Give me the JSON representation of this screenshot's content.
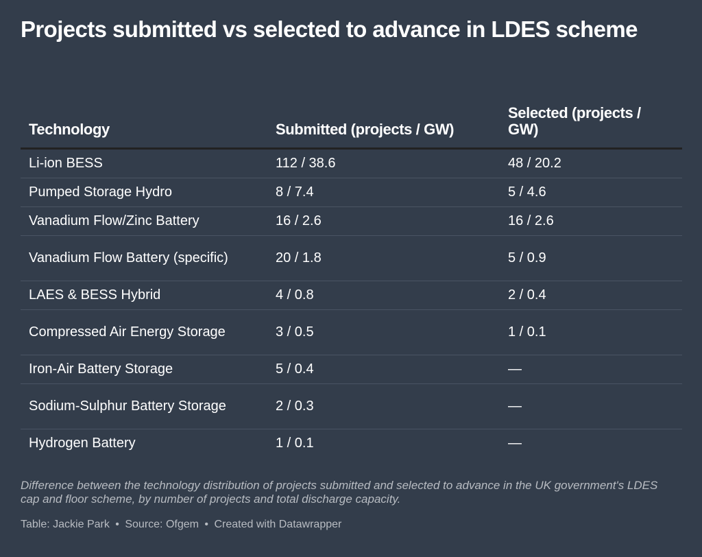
{
  "title": "Projects submitted vs selected to advance in LDES scheme",
  "chart_data": {
    "type": "table",
    "title": "Projects submitted vs selected to advance in LDES scheme",
    "columns": [
      "Technology",
      "Submitted (projects / GW)",
      "Selected (projects / GW)"
    ],
    "rows": [
      [
        "Li-ion BESS",
        "112 / 38.6",
        "48 / 20.2"
      ],
      [
        "Pumped Storage Hydro",
        "8 / 7.4",
        "5 / 4.6"
      ],
      [
        "Vanadium Flow/Zinc Battery",
        "16 / 2.6",
        "16 / 2.6"
      ],
      [
        "Vanadium Flow Battery (specific)",
        "20 / 1.8",
        "5 / 0.9"
      ],
      [
        "LAES & BESS Hybrid",
        "4 / 0.8",
        "2 / 0.4"
      ],
      [
        "Compressed Air Energy Storage",
        "3 / 0.5",
        "1 / 0.1"
      ],
      [
        "Iron-Air Battery Storage",
        "5 / 0.4",
        "—"
      ],
      [
        "Sodium-Sulphur Battery Storage",
        "2 / 0.3",
        "—"
      ],
      [
        "Hydrogen Battery",
        "1 / 0.1",
        "—"
      ]
    ]
  },
  "caption": "Difference between the technology distribution of projects submitted and selected to advance in the UK government's LDES cap and floor scheme, by number of projects and total discharge capacity.",
  "footer": {
    "credit": "Table: Jackie Park",
    "source": "Source: Ofgem",
    "tool": "Created with Datawrapper",
    "separator": "•"
  },
  "colors": {
    "background": "#333d4b",
    "text": "#ffffff",
    "muted_text": "#b8bcc2",
    "header_rule": "#222222",
    "row_rule": "#4a5463"
  }
}
